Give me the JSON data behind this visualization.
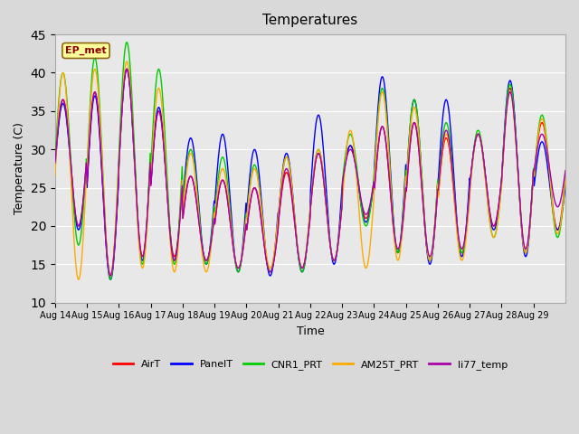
{
  "title": "Temperatures",
  "ylabel": "Temperature (C)",
  "xlabel": "Time",
  "ylim": [
    10,
    45
  ],
  "series": {
    "AirT": {
      "color": "#ff0000",
      "lw": 1.2
    },
    "PanelT": {
      "color": "#0000ff",
      "lw": 1.2
    },
    "CNR1_PRT": {
      "color": "#00cc00",
      "lw": 1.2
    },
    "AM25T_PRT": {
      "color": "#ffaa00",
      "lw": 1.2
    },
    "li77_temp": {
      "color": "#aa00aa",
      "lw": 1.2
    }
  },
  "annotation_text": "EP_met",
  "annotation_color": "#8b0000",
  "annotation_bg": "#ffff99",
  "xtick_labels": [
    "Aug 14",
    "Aug 15",
    "Aug 16",
    "Aug 17",
    "Aug 18",
    "Aug 19",
    "Aug 20",
    "Aug 21",
    "Aug 22",
    "Aug 23",
    "Aug 24",
    "Aug 25",
    "Aug 26",
    "Aug 27",
    "Aug 28",
    "Aug 29"
  ],
  "ytick_vals": [
    10,
    15,
    20,
    25,
    30,
    35,
    40,
    45
  ],
  "n_days": 16,
  "pts_per_day": 48,
  "peaks_air": [
    36.5,
    37.5,
    40.5,
    35.0,
    26.5,
    26.0,
    25.0,
    27.0,
    29.5,
    30.5,
    33.0,
    33.5,
    31.5,
    32.0,
    38.0,
    33.5
  ],
  "mins_air": [
    20.0,
    13.5,
    16.0,
    16.0,
    15.5,
    14.5,
    14.0,
    14.5,
    15.5,
    21.0,
    16.5,
    15.5,
    16.5,
    20.0,
    16.5,
    19.5
  ],
  "peaks_panel": [
    36.0,
    37.0,
    40.5,
    35.5,
    31.5,
    32.0,
    30.0,
    29.5,
    34.5,
    30.5,
    39.5,
    36.5,
    36.5,
    32.0,
    39.0,
    31.0
  ],
  "mins_panel": [
    19.5,
    13.0,
    15.5,
    15.5,
    15.0,
    14.0,
    13.5,
    14.0,
    15.0,
    20.5,
    16.5,
    15.0,
    16.0,
    19.5,
    16.0,
    19.5
  ],
  "peaks_cnr": [
    40.0,
    42.0,
    44.0,
    40.5,
    30.0,
    29.0,
    28.0,
    29.0,
    30.0,
    32.0,
    38.0,
    36.5,
    33.5,
    32.5,
    38.5,
    34.5
  ],
  "mins_cnr": [
    17.5,
    13.0,
    15.0,
    15.0,
    15.0,
    14.0,
    14.0,
    14.0,
    15.5,
    20.0,
    16.5,
    15.5,
    16.5,
    18.5,
    16.5,
    18.5
  ],
  "peaks_am25": [
    40.0,
    40.5,
    41.5,
    38.0,
    29.5,
    27.5,
    27.5,
    29.0,
    30.0,
    32.5,
    37.5,
    35.5,
    32.0,
    32.0,
    37.5,
    34.0
  ],
  "mins_am25": [
    13.0,
    13.5,
    14.5,
    14.0,
    14.0,
    14.5,
    14.5,
    14.5,
    15.5,
    14.5,
    15.5,
    15.5,
    15.5,
    18.5,
    16.5,
    19.0
  ],
  "peaks_li77": [
    36.5,
    37.5,
    40.5,
    35.0,
    26.5,
    26.0,
    25.0,
    27.5,
    29.5,
    30.0,
    33.0,
    33.5,
    32.5,
    32.0,
    37.5,
    32.0
  ],
  "mins_li77": [
    20.0,
    13.5,
    16.0,
    15.5,
    15.5,
    14.5,
    14.0,
    14.5,
    15.5,
    21.5,
    17.0,
    16.0,
    17.0,
    20.0,
    17.0,
    22.5
  ]
}
